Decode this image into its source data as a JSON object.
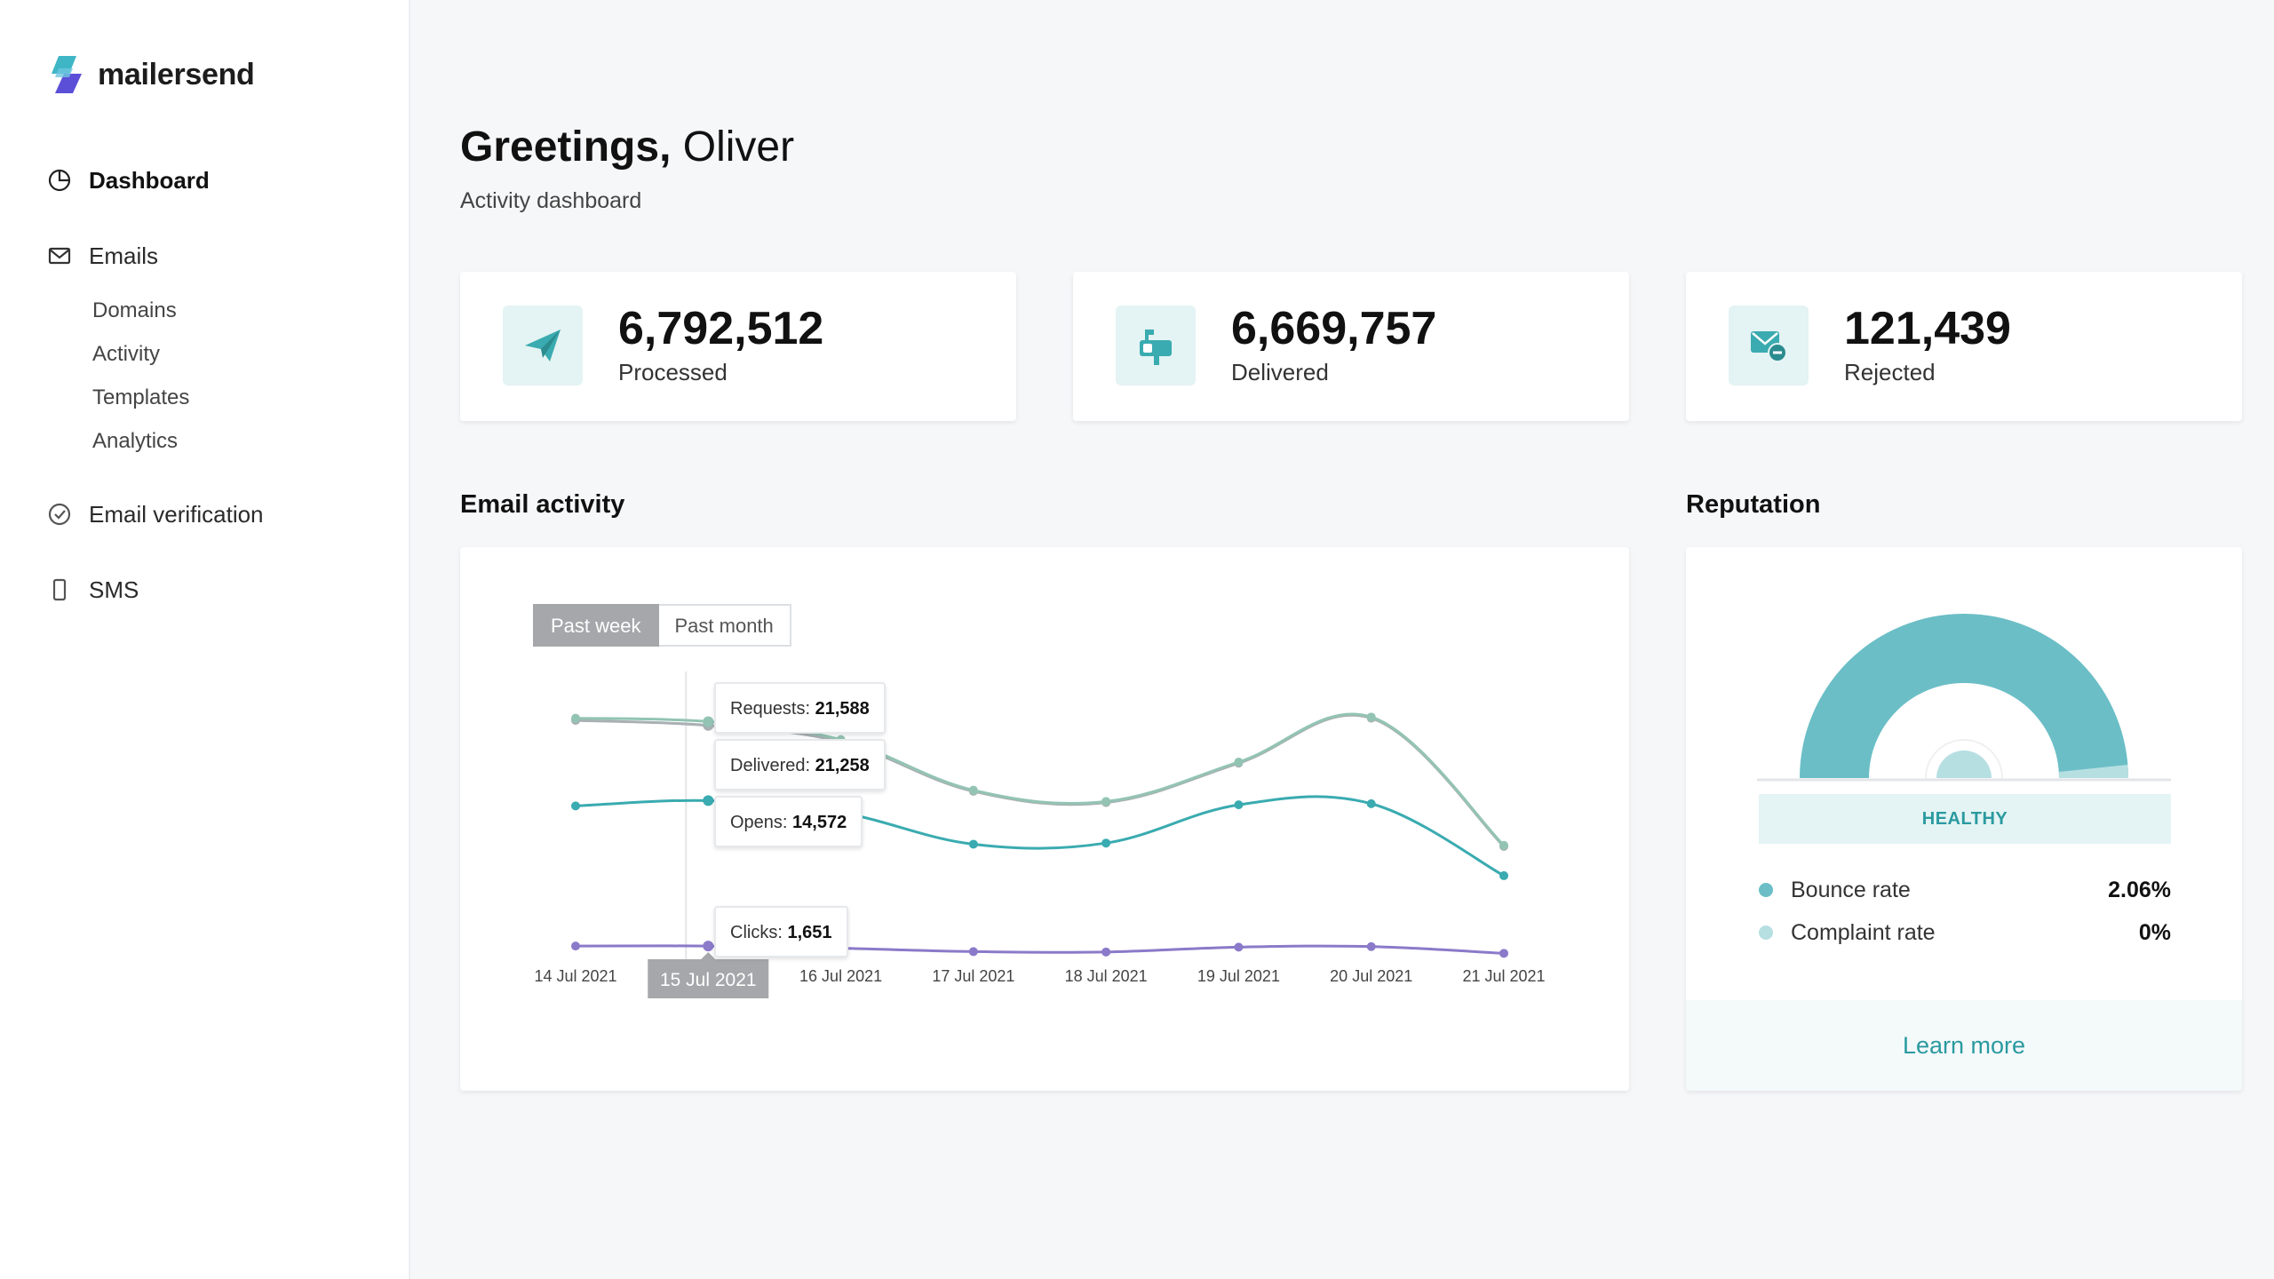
{
  "brand": {
    "name": "mailersend",
    "accent": "#2a9aa0"
  },
  "sidebar": {
    "items": [
      {
        "label": "Dashboard",
        "icon": "pie-chart-icon",
        "active": true
      },
      {
        "label": "Emails",
        "icon": "envelope-icon"
      },
      {
        "label": "Email verification",
        "icon": "check-circle-icon"
      },
      {
        "label": "SMS",
        "icon": "phone-icon"
      }
    ],
    "email_sub": [
      "Domains",
      "Activity",
      "Templates",
      "Analytics"
    ]
  },
  "header": {
    "greeting": "Greetings,",
    "name": " Oliver",
    "subtitle": "Activity dashboard"
  },
  "stats": [
    {
      "value": "6,792,512",
      "label": "Processed",
      "icon": "paper-plane-icon"
    },
    {
      "value": "6,669,757",
      "label": "Delivered",
      "icon": "mailbox-icon"
    },
    {
      "value": "121,439",
      "label": "Rejected",
      "icon": "envelope-minus-icon"
    }
  ],
  "activity": {
    "title": "Email activity",
    "tabs": [
      "Past week",
      "Past month"
    ],
    "selected_date": "15 Jul 2021",
    "tooltips": [
      {
        "label": "Requests: ",
        "value": "21,588"
      },
      {
        "label": "Delivered: ",
        "value": "21,258"
      },
      {
        "label": "Opens: ",
        "value": "14,572"
      },
      {
        "label": "Clicks: ",
        "value": "1,651"
      }
    ]
  },
  "chart_data": {
    "type": "line",
    "categories": [
      "14 Jul 2021",
      "15 Jul 2021",
      "16 Jul 2021",
      "17 Jul 2021",
      "18 Jul 2021",
      "19 Jul 2021",
      "20 Jul 2021",
      "21 Jul 2021"
    ],
    "ylim": [
      0,
      30000
    ],
    "series": [
      {
        "name": "Requests",
        "color": "#93c4b3",
        "values": [
          21900,
          21588,
          20000,
          15500,
          14500,
          18000,
          22000,
          10600
        ]
      },
      {
        "name": "Delivered",
        "color": "#a9b0b3",
        "values": [
          21700,
          21258,
          19800,
          15400,
          14400,
          17900,
          21900,
          10500
        ]
      },
      {
        "name": "Opens",
        "color": "#3aabb0",
        "values": [
          14100,
          14572,
          13500,
          10700,
          10800,
          14200,
          14300,
          7900
        ]
      },
      {
        "name": "Clicks",
        "color": "#8b7ac9",
        "values": [
          1650,
          1651,
          1450,
          1150,
          1120,
          1550,
          1600,
          1000
        ]
      }
    ]
  },
  "reputation": {
    "title": "Reputation",
    "status": "HEALTHY",
    "rates": [
      {
        "label": "Bounce rate",
        "value": "2.06%",
        "color": "#6bbec6"
      },
      {
        "label": "Complaint rate",
        "value": "0%",
        "color": "#b6dfe2"
      }
    ],
    "learn_more": "Learn more"
  }
}
